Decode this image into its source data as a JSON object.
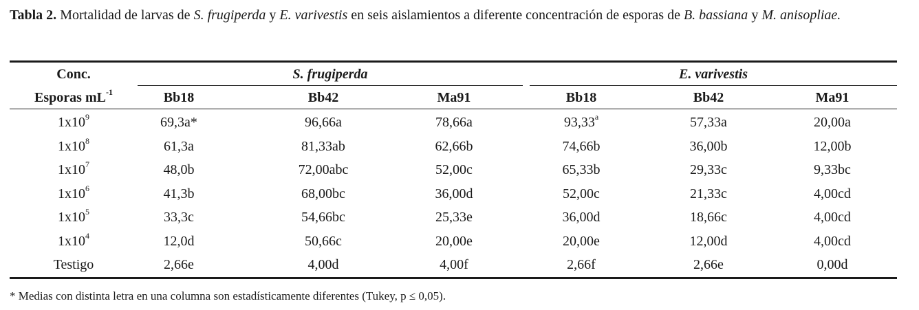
{
  "caption": {
    "label": "Tabla 2.",
    "part1": " Mortalidad de larvas de ",
    "sp1": "S. frugiperda",
    "part2": " y ",
    "sp2": "E. varivestis",
    "part3": " en seis aislamientos a diferente concentración de esporas de ",
    "sp3": "B. bassiana",
    "part4": " y ",
    "sp4": "M. anisopliae."
  },
  "header": {
    "conc_line1": "Conc.",
    "conc_line2": "Esporas mL",
    "conc_sup": "-1",
    "group1": "S. frugiperda",
    "group2": "E. varivestis",
    "columns": [
      "Bb18",
      "Bb42",
      "Ma91",
      "Bb18",
      "Bb42",
      "Ma91"
    ]
  },
  "rows": [
    {
      "conc": "1x10",
      "exp": "9",
      "cells": [
        "69,3a*",
        "96,66a",
        "78,66a",
        "93,33",
        "57,33a",
        "20,00a"
      ],
      "cell4_sup": "a"
    },
    {
      "conc": "1x10",
      "exp": "8",
      "cells": [
        "61,3a",
        "81,33ab",
        "62,66b",
        "74,66b",
        "36,00b",
        "12,00b"
      ]
    },
    {
      "conc": "1x10",
      "exp": "7",
      "cells": [
        "48,0b",
        "72,00abc",
        "52,00c",
        "65,33b",
        "29,33c",
        "9,33bc"
      ]
    },
    {
      "conc": "1x10",
      "exp": "6",
      "cells": [
        "41,3b",
        "68,00bc",
        "36,00d",
        "52,00c",
        "21,33c",
        "4,00cd"
      ]
    },
    {
      "conc": "1x10",
      "exp": "5",
      "cells": [
        "33,3c",
        "54,66bc",
        "25,33e",
        "36,00d",
        "18,66c",
        "4,00cd"
      ]
    },
    {
      "conc": "1x10",
      "exp": "4",
      "cells": [
        "12,0d",
        "50,66c",
        "20,00e",
        "20,00e",
        "12,00d",
        "4,00cd"
      ]
    },
    {
      "conc": "Testigo",
      "exp": "",
      "cells": [
        "2,66e",
        "4,00d",
        "4,00f",
        "2,66f",
        "2,66e",
        "0,00d"
      ]
    }
  ],
  "footnote": "* Medias con distinta letra en una columna son estadísticamente diferentes (Tukey, p ≤ 0,05)."
}
